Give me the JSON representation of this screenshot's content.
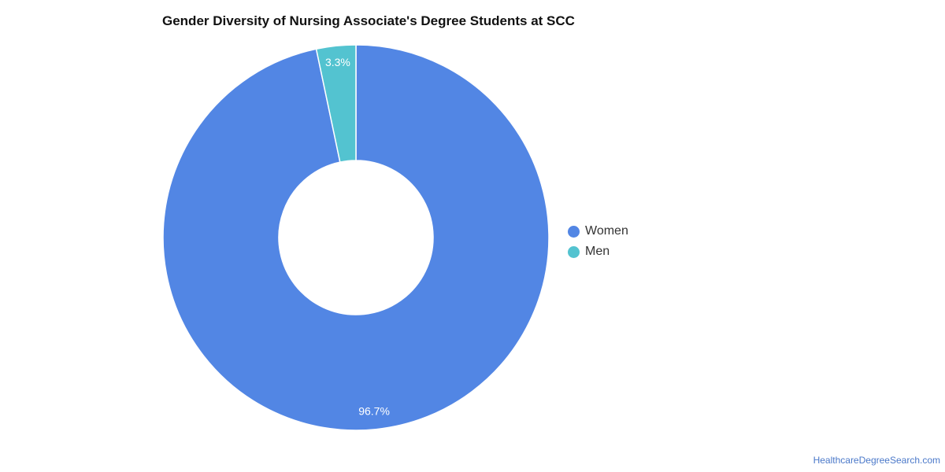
{
  "chart_data": {
    "type": "pie",
    "title": "Gender Diversity of Nursing Associate's Degree Students at SCC",
    "categories": [
      "Women",
      "Men"
    ],
    "values": [
      96.7,
      3.3
    ],
    "labels": [
      "96.7%",
      "3.3%"
    ],
    "colors": [
      "#5286e4",
      "#53c3d0"
    ],
    "donut": true,
    "legend_position": "right"
  },
  "footer": {
    "source_link": "HealthcareDegreeSearch.com"
  }
}
